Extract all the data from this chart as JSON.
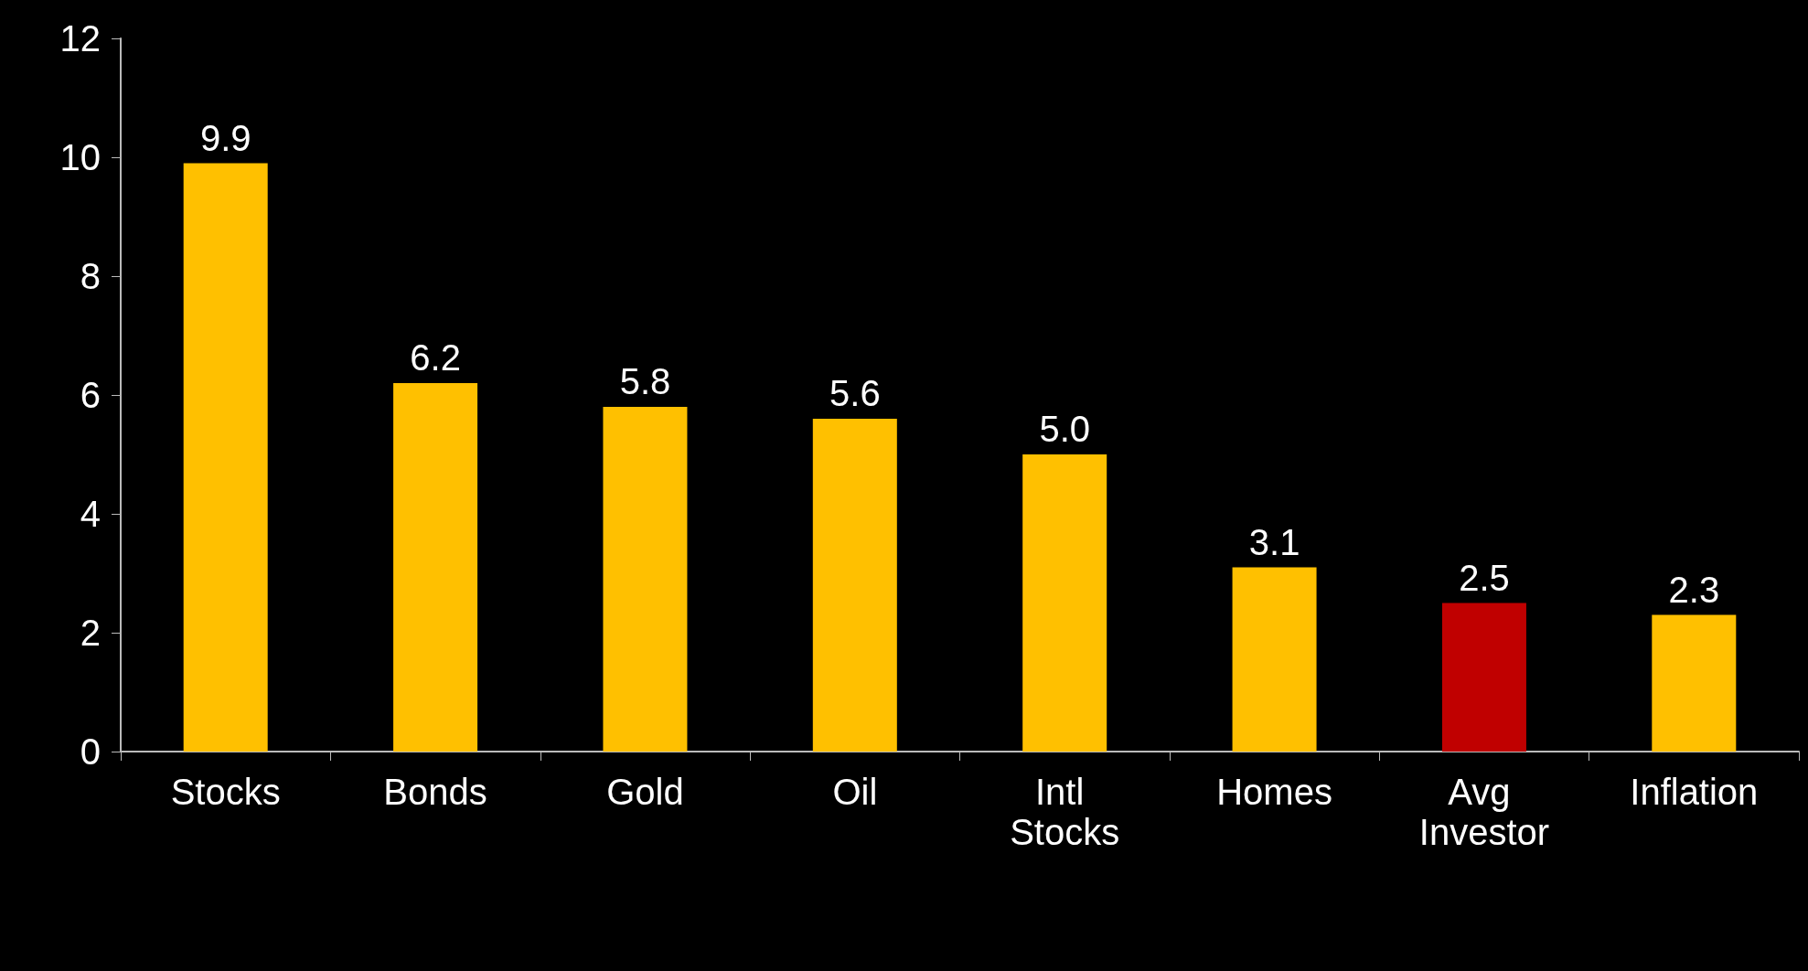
{
  "chart_data": {
    "type": "bar",
    "categories": [
      "Stocks",
      "Bonds",
      "Gold",
      "Oil",
      "Intl Stocks",
      "Homes",
      "Avg Investor",
      "Inflation"
    ],
    "values": [
      9.9,
      6.2,
      5.8,
      5.6,
      5.0,
      3.1,
      2.5,
      2.3
    ],
    "colors": [
      "#ffc000",
      "#ffc000",
      "#ffc000",
      "#ffc000",
      "#ffc000",
      "#ffc000",
      "#c00000",
      "#ffc000"
    ],
    "value_labels": [
      "9.9",
      "6.2",
      "5.8",
      "5.6",
      "5.0",
      "3.1",
      "2.5",
      "2.3"
    ],
    "ylim": [
      0,
      12
    ],
    "yticks": [
      0,
      2,
      4,
      6,
      8,
      10,
      12
    ],
    "grid": false
  }
}
